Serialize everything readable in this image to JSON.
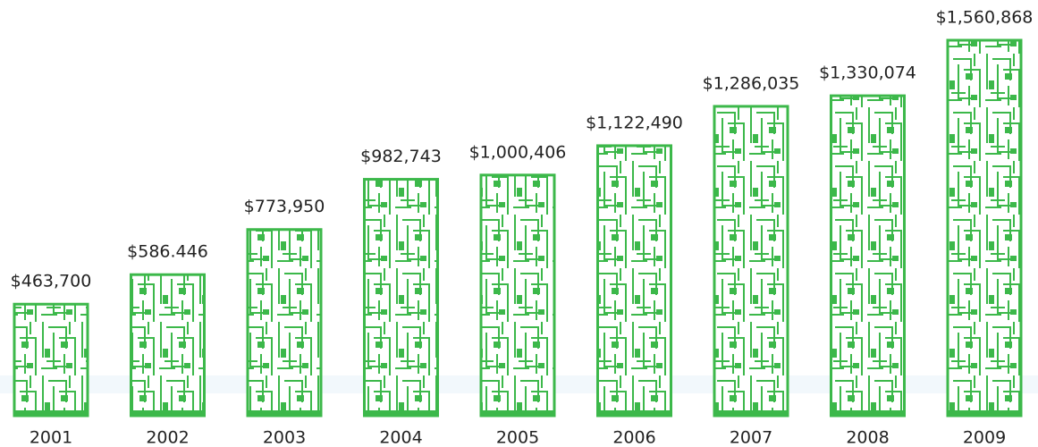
{
  "chart_data": {
    "type": "pictograph",
    "categories": [
      "2001",
      "2002",
      "2003",
      "2004",
      "2005",
      "2006",
      "2007",
      "2008",
      "2009"
    ],
    "values": [
      463700,
      586446,
      773950,
      982743,
      1000406,
      1122490,
      1286035,
      1330074,
      1560868
    ],
    "value_labels": [
      "$463,700",
      "$586.446",
      "$773,950",
      "$982,743",
      "$1,000,406",
      "$1,122,490",
      "$1,286,035",
      "$1,330,074",
      "$1,560,868"
    ],
    "color": "#3cb84a"
  }
}
